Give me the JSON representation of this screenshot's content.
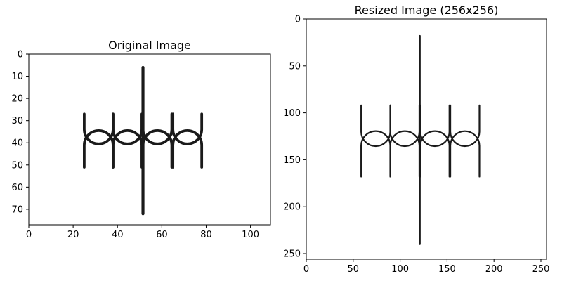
{
  "chart_data": [
    {
      "type": "image",
      "title": "Original Image",
      "xlabel": "",
      "ylabel": "",
      "xlim": [
        0,
        109
      ],
      "ylim": [
        77,
        0
      ],
      "x_ticks": [
        0,
        20,
        40,
        60,
        80,
        100
      ],
      "y_ticks": [
        0,
        10,
        20,
        30,
        40,
        50,
        60,
        70
      ],
      "grid": false,
      "image_content": {
        "description_color": "#1a1a1a",
        "vertical_stem": {
          "x": 51.5,
          "y_top": 6,
          "y_bottom": 72
        },
        "upper_row": {
          "y": 34,
          "loop_centers": [
            31.5,
            44.5,
            58,
            71.5
          ],
          "radius": 6.5,
          "arm_top_y": 27
        },
        "lower_row": {
          "y": 41,
          "loop_centers": [
            31.5,
            44.5,
            58,
            71.5
          ],
          "radius": 6.5,
          "arm_bottom_y": 51
        }
      }
    },
    {
      "type": "image",
      "title": "Resized Image (256x256)",
      "xlabel": "",
      "ylabel": "",
      "xlim": [
        0,
        256
      ],
      "ylim": [
        256,
        0
      ],
      "x_ticks": [
        0,
        50,
        100,
        150,
        200,
        250
      ],
      "y_ticks": [
        0,
        50,
        100,
        150,
        200,
        250
      ],
      "grid": false,
      "image_content": {
        "description_color": "#1a1a1a",
        "vertical_stem": {
          "x": 121,
          "y_top": 18,
          "y_bottom": 240
        },
        "upper_row": {
          "y": 120,
          "loop_centers": [
            74,
            105,
            137,
            169
          ],
          "radius": 15.5,
          "arm_top_y": 92
        },
        "lower_row": {
          "y": 135,
          "loop_centers": [
            74,
            105,
            137,
            169
          ],
          "radius": 15.5,
          "arm_bottom_y": 168
        }
      }
    }
  ]
}
